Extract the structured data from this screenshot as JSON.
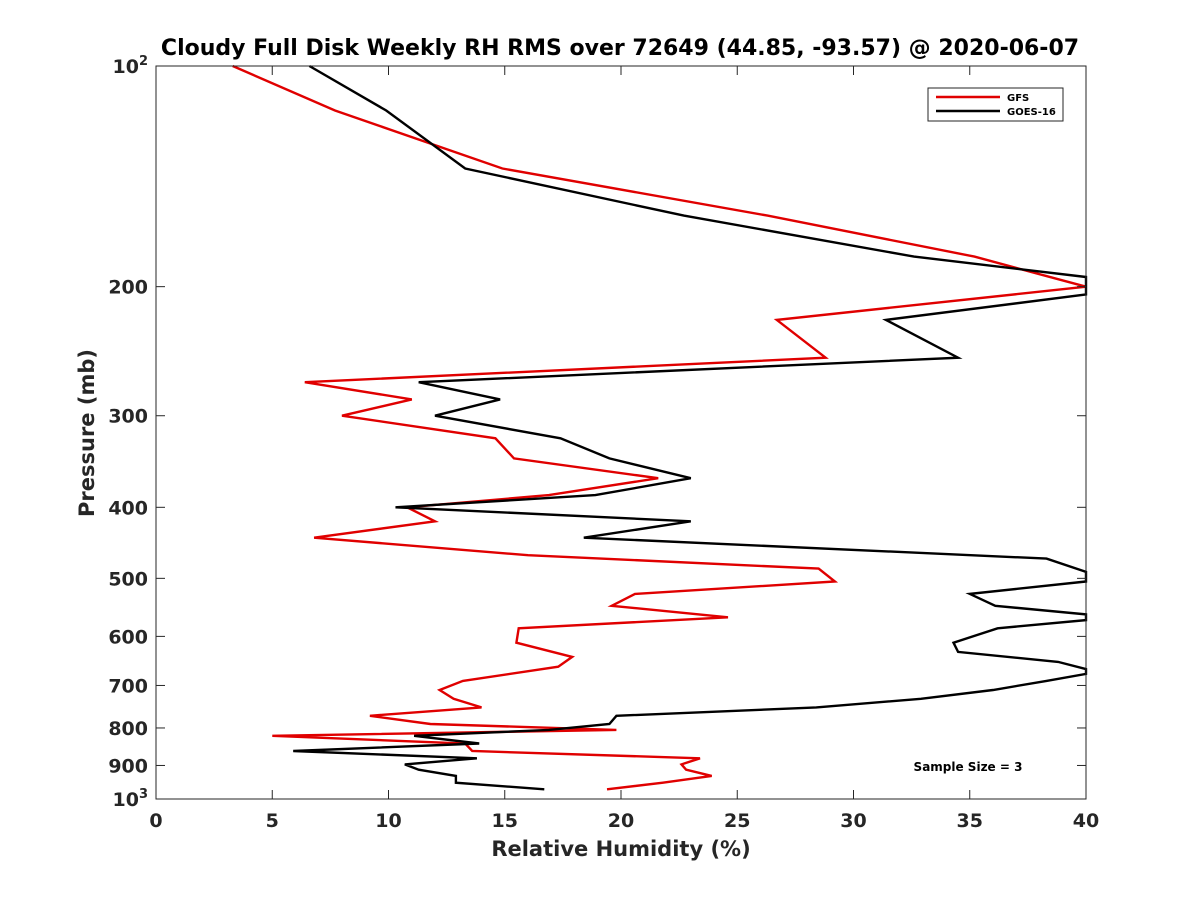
{
  "chart_data": {
    "type": "line",
    "title": "Cloudy Full Disk Weekly RH RMS over 72649 (44.85, -93.57) @ 2020-06-07",
    "xlabel": "Relative Humidity (%)",
    "ylabel": "Pressure (mb)",
    "xlim": [
      0,
      40
    ],
    "ylim": [
      100,
      1000
    ],
    "y_scale": "log",
    "y_reversed": true,
    "grid": false,
    "x_ticks": [
      "0",
      "5",
      "10",
      "15",
      "20",
      "25",
      "30",
      "35",
      "40"
    ],
    "y_ticks": [
      {
        "value": 100,
        "base": "10",
        "exp": "2"
      },
      {
        "value": 200,
        "label": "200"
      },
      {
        "value": 300,
        "label": "300"
      },
      {
        "value": 400,
        "label": "400"
      },
      {
        "value": 500,
        "label": "500"
      },
      {
        "value": 600,
        "label": "600"
      },
      {
        "value": 700,
        "label": "700"
      },
      {
        "value": 800,
        "label": "800"
      },
      {
        "value": 900,
        "label": "900"
      },
      {
        "value": 1000,
        "base": "10",
        "exp": "3"
      }
    ],
    "legend": {
      "position": "top-right"
    },
    "annotation": "Sample Size = 3",
    "series": [
      {
        "name": "GFS",
        "color": "#e00000",
        "points": [
          [
            3.3,
            100
          ],
          [
            7.7,
            115
          ],
          [
            14.9,
            138
          ],
          [
            26.3,
            160
          ],
          [
            35.2,
            182
          ],
          [
            40.0,
            200
          ],
          [
            26.7,
            222
          ],
          [
            28.8,
            250
          ],
          [
            6.4,
            270
          ],
          [
            11.0,
            285
          ],
          [
            8.0,
            300
          ],
          [
            14.6,
            322
          ],
          [
            15.4,
            343
          ],
          [
            21.6,
            365
          ],
          [
            16.9,
            385
          ],
          [
            10.8,
            400
          ],
          [
            12.0,
            418
          ],
          [
            6.8,
            440
          ],
          [
            16.0,
            465
          ],
          [
            28.5,
            485
          ],
          [
            29.2,
            505
          ],
          [
            20.6,
            525
          ],
          [
            19.6,
            545
          ],
          [
            24.6,
            565
          ],
          [
            15.6,
            585
          ],
          [
            15.5,
            612
          ],
          [
            17.9,
            640
          ],
          [
            17.3,
            660
          ],
          [
            13.2,
            690
          ],
          [
            12.2,
            710
          ],
          [
            12.8,
            730
          ],
          [
            14.0,
            750
          ],
          [
            9.2,
            770
          ],
          [
            11.8,
            790
          ],
          [
            19.8,
            805
          ],
          [
            5.0,
            820
          ],
          [
            13.3,
            840
          ],
          [
            13.6,
            860
          ],
          [
            23.4,
            880
          ],
          [
            22.6,
            897
          ],
          [
            22.8,
            912
          ],
          [
            23.9,
            930
          ],
          [
            21.8,
            950
          ],
          [
            19.4,
            970
          ]
        ]
      },
      {
        "name": "GOES-16",
        "color": "#000000",
        "points": [
          [
            6.6,
            100
          ],
          [
            9.9,
            115
          ],
          [
            13.3,
            138
          ],
          [
            22.7,
            160
          ],
          [
            32.6,
            182
          ],
          [
            40.0,
            194
          ],
          [
            40.0,
            205
          ],
          [
            31.4,
            222
          ],
          [
            34.5,
            250
          ],
          [
            11.3,
            270
          ],
          [
            14.8,
            285
          ],
          [
            12.0,
            300
          ],
          [
            17.4,
            322
          ],
          [
            19.5,
            343
          ],
          [
            23.0,
            365
          ],
          [
            18.9,
            385
          ],
          [
            10.3,
            400
          ],
          [
            23.0,
            418
          ],
          [
            18.4,
            440
          ],
          [
            38.3,
            470
          ],
          [
            40.0,
            490
          ],
          [
            40.0,
            505
          ],
          [
            35.0,
            525
          ],
          [
            36.1,
            545
          ],
          [
            40.0,
            560
          ],
          [
            40.0,
            570
          ],
          [
            36.2,
            585
          ],
          [
            34.3,
            612
          ],
          [
            34.5,
            630
          ],
          [
            38.8,
            650
          ],
          [
            40.0,
            665
          ],
          [
            40.0,
            675
          ],
          [
            38.3,
            690
          ],
          [
            36.0,
            710
          ],
          [
            32.9,
            730
          ],
          [
            28.4,
            750
          ],
          [
            19.8,
            770
          ],
          [
            19.5,
            790
          ],
          [
            16.9,
            805
          ],
          [
            11.1,
            820
          ],
          [
            13.9,
            840
          ],
          [
            5.9,
            860
          ],
          [
            13.8,
            880
          ],
          [
            10.7,
            897
          ],
          [
            11.3,
            912
          ],
          [
            12.9,
            930
          ],
          [
            12.9,
            950
          ],
          [
            16.7,
            970
          ]
        ]
      }
    ]
  }
}
